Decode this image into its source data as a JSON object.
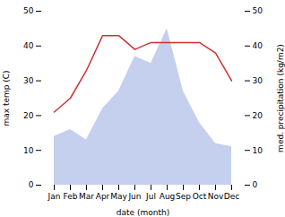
{
  "chart_data": {
    "type": "line",
    "xlabel": "date (month)",
    "ylabel": "max temp (C)",
    "y2label": "med. precipitation (kg/m2)",
    "categories": [
      "Jan",
      "Feb",
      "Mar",
      "Apr",
      "May",
      "Jun",
      "Jul",
      "Aug",
      "Sep",
      "Oct",
      "Nov",
      "Dec"
    ],
    "ylim": [
      0,
      50
    ],
    "yticks": [
      0,
      10,
      20,
      30,
      40,
      50
    ],
    "y2lim": [
      0,
      50
    ],
    "y2ticks": [
      0,
      10,
      20,
      30,
      40,
      50
    ],
    "series": [
      {
        "type": "area",
        "axis": "y2",
        "color": "#c5cfee",
        "values": [
          14,
          16,
          13,
          22,
          27,
          37,
          35,
          45,
          27,
          18,
          12,
          11
        ]
      },
      {
        "type": "line",
        "color": "#cc3333",
        "values": [
          21,
          25,
          33,
          43,
          43,
          39,
          41,
          41,
          41,
          41,
          38,
          30
        ]
      }
    ]
  }
}
